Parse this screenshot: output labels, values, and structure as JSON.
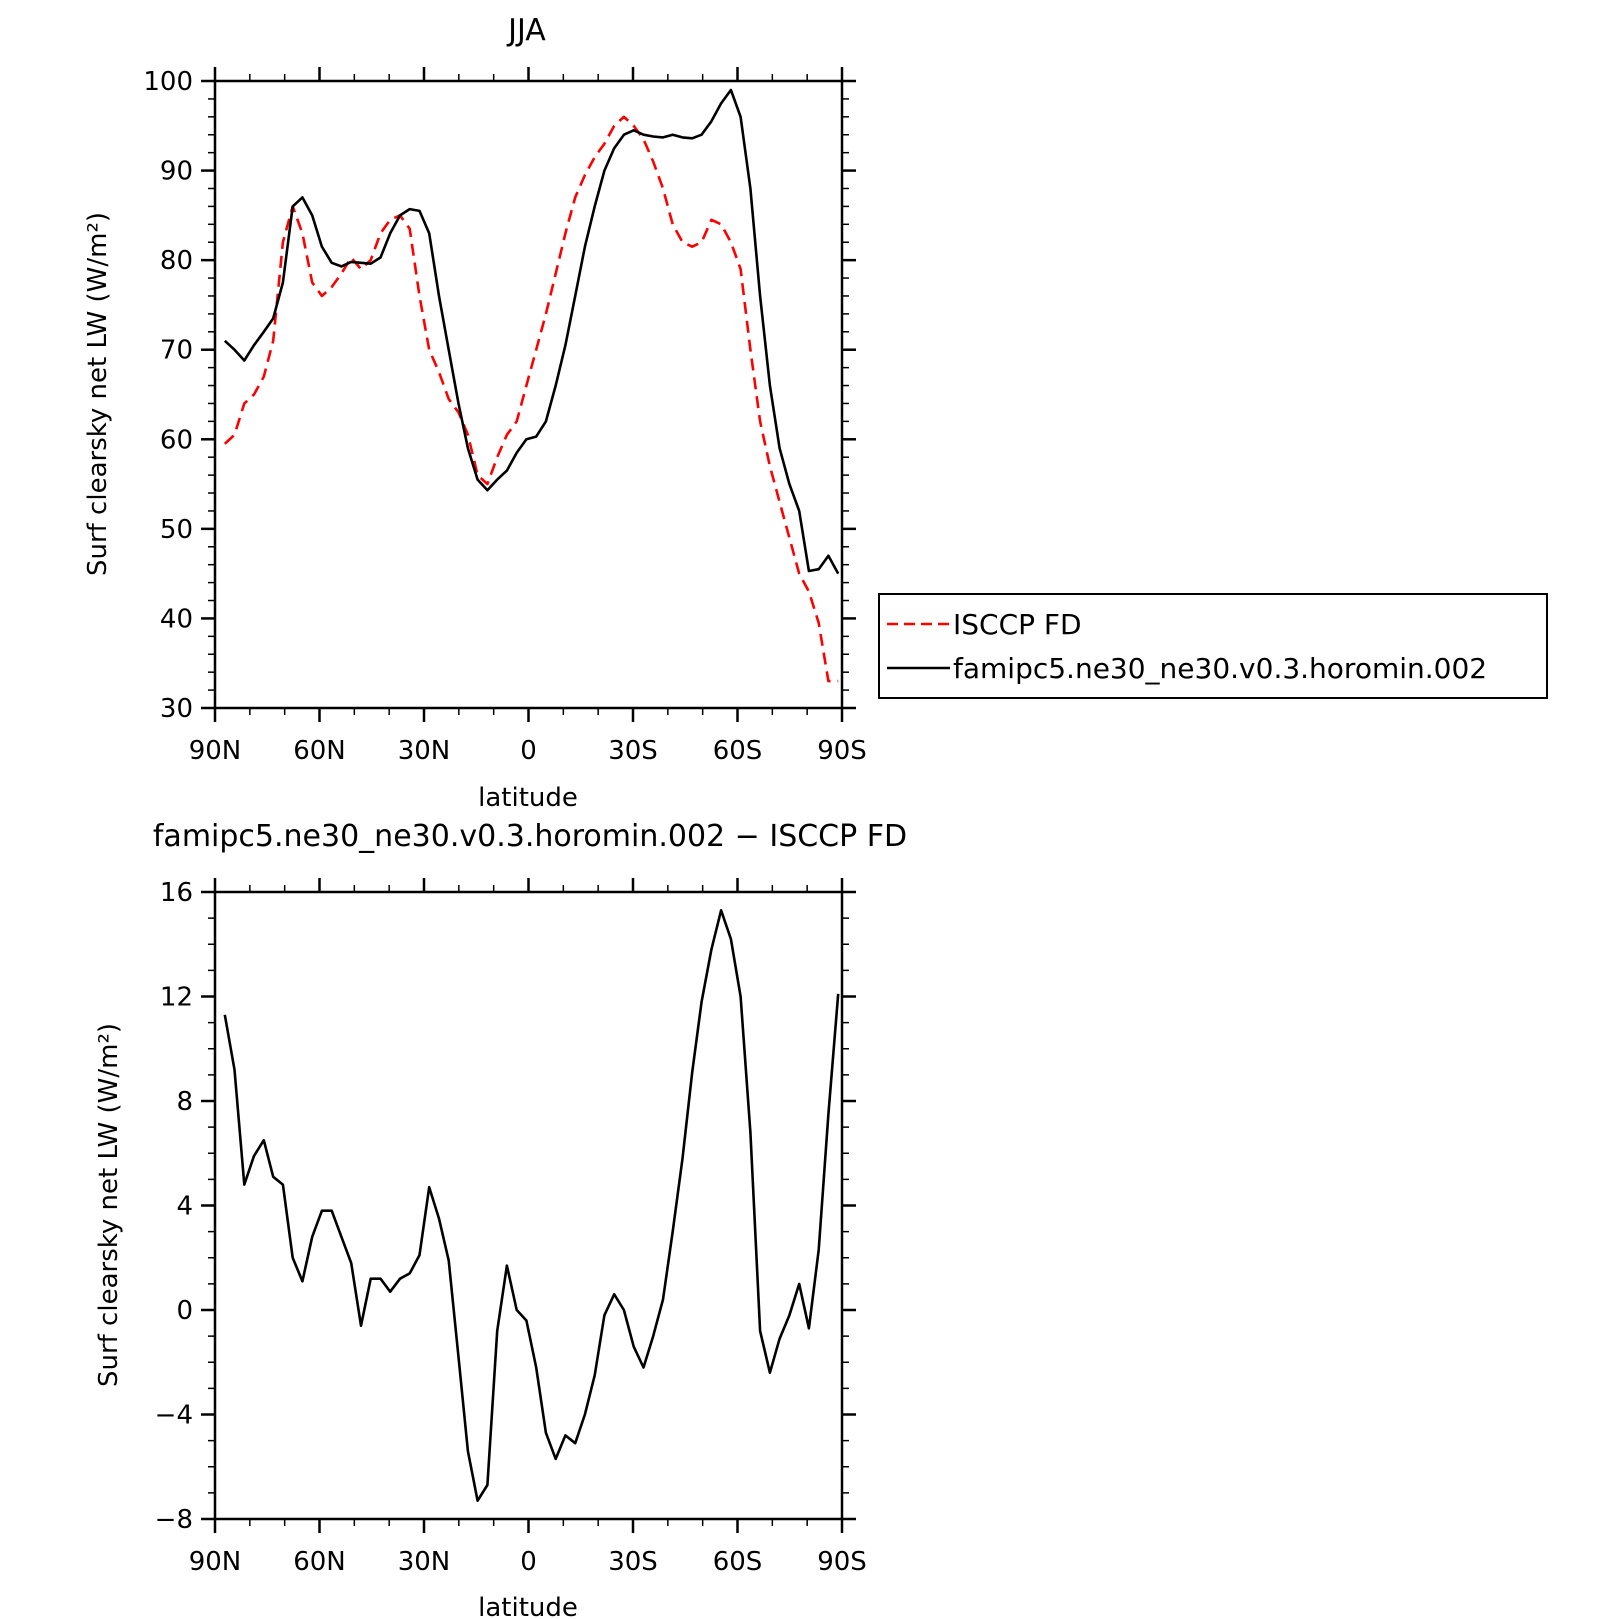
{
  "chart_data": [
    {
      "type": "line",
      "title": "JJA",
      "xlabel": "latitude",
      "ylabel": "Surf clearsky net LW (W/m²)",
      "xlim": [
        90,
        -90
      ],
      "ylim": [
        30,
        100
      ],
      "yticks": [
        30,
        40,
        50,
        60,
        70,
        80,
        90,
        100
      ],
      "ytick_labels": [
        "30",
        "40",
        "50",
        "60",
        "70",
        "80",
        "90",
        "100"
      ],
      "xticks": [
        90,
        60,
        30,
        0,
        -30,
        -60,
        -90
      ],
      "xtick_labels": [
        "90N",
        "60N",
        "30N",
        "0",
        "30S",
        "60S",
        "90S"
      ],
      "grid": false,
      "legend": "right",
      "x": [
        87.2,
        84.4,
        81.6,
        78.8,
        76.0,
        73.3,
        70.5,
        67.7,
        64.9,
        62.1,
        59.3,
        56.5,
        53.7,
        50.9,
        48.1,
        45.3,
        42.5,
        39.7,
        36.9,
        34.1,
        31.3,
        28.5,
        25.7,
        22.9,
        20.1,
        17.4,
        14.6,
        11.8,
        9.0,
        6.2,
        3.4,
        0.6,
        -2.2,
        -5.0,
        -7.8,
        -10.6,
        -13.4,
        -16.2,
        -19.0,
        -21.8,
        -24.6,
        -27.4,
        -30.2,
        -33.0,
        -35.8,
        -38.6,
        -41.4,
        -44.2,
        -47.0,
        -49.7,
        -52.5,
        -55.3,
        -58.1,
        -60.9,
        -63.7,
        -66.5,
        -69.3,
        -72.1,
        -74.9,
        -77.7,
        -80.5,
        -83.3,
        -86.1,
        -88.9
      ],
      "series": [
        {
          "name": "ISCCP FD",
          "color": "#ff0000",
          "dash": "dashed",
          "values": [
            59.5,
            60.5,
            64.0,
            65.0,
            67.0,
            71.0,
            82.0,
            86.0,
            83.0,
            77.5,
            76.0,
            77.0,
            78.5,
            80.3,
            79.0,
            80.0,
            83.0,
            84.5,
            85.0,
            83.5,
            76.0,
            70.0,
            67.5,
            64.5,
            63.0,
            60.5,
            56.0,
            55.0,
            58.0,
            60.5,
            62.0,
            66.0,
            70.0,
            74.0,
            78.5,
            83.0,
            87.0,
            89.5,
            91.5,
            93.0,
            95.0,
            96.0,
            95.0,
            93.5,
            91.0,
            88.0,
            84.0,
            82.0,
            81.5,
            82.0,
            84.5,
            84.0,
            82.0,
            79.0,
            70.0,
            62.0,
            57.0,
            53.0,
            49.0,
            45.0,
            43.0,
            39.5,
            33.0,
            33.0
          ]
        },
        {
          "name": "famipc5.ne30_ne30.v0.3.horomin.002",
          "color": "#000000",
          "dash": "solid",
          "values": [
            71.0,
            70.0,
            68.8,
            70.5,
            72.0,
            73.5,
            77.5,
            86.0,
            87.0,
            85.0,
            81.5,
            79.7,
            79.3,
            79.8,
            79.7,
            79.6,
            80.3,
            83.0,
            85.0,
            85.7,
            85.5,
            83.0,
            76.0,
            70.0,
            64.0,
            59.0,
            55.5,
            54.3,
            55.5,
            56.5,
            58.5,
            60.0,
            60.3,
            62.0,
            66.0,
            70.5,
            76.0,
            81.5,
            86.0,
            90.0,
            92.5,
            94.0,
            94.5,
            94.0,
            93.8,
            93.7,
            94.0,
            93.7,
            93.6,
            94.0,
            95.5,
            97.5,
            99.0,
            96.0,
            88.0,
            76.0,
            66.0,
            59.0,
            55.0,
            52.0,
            45.3,
            45.5,
            47.0,
            45.0
          ]
        }
      ]
    },
    {
      "type": "line",
      "title": "famipc5.ne30_ne30.v0.3.horomin.002 − ISCCP FD",
      "xlabel": "latitude",
      "ylabel": "Surf clearsky net LW (W/m²)",
      "xlim": [
        90,
        -90
      ],
      "ylim": [
        -8,
        16
      ],
      "yticks": [
        -8,
        -4,
        0,
        4,
        8,
        12,
        16
      ],
      "ytick_labels": [
        "−8",
        "−4",
        "0",
        "4",
        "8",
        "12",
        "16"
      ],
      "xticks": [
        90,
        60,
        30,
        0,
        -30,
        -60,
        -90
      ],
      "xtick_labels": [
        "90N",
        "60N",
        "30N",
        "0",
        "30S",
        "60S",
        "90S"
      ],
      "grid": false,
      "x": [
        87.2,
        84.4,
        81.6,
        78.8,
        76.0,
        73.3,
        70.5,
        67.7,
        64.9,
        62.1,
        59.3,
        56.5,
        53.7,
        50.9,
        48.1,
        45.3,
        42.5,
        39.7,
        36.9,
        34.1,
        31.3,
        28.5,
        25.7,
        22.9,
        20.1,
        17.4,
        14.6,
        11.8,
        9.0,
        6.2,
        3.4,
        0.6,
        -2.2,
        -5.0,
        -7.8,
        -10.6,
        -13.4,
        -16.2,
        -19.0,
        -21.8,
        -24.6,
        -27.4,
        -30.2,
        -33.0,
        -35.8,
        -38.6,
        -41.4,
        -44.2,
        -47.0,
        -49.7,
        -52.5,
        -55.3,
        -58.1,
        -60.9,
        -63.7,
        -66.5,
        -69.3,
        -72.1,
        -74.9,
        -77.7,
        -80.5,
        -83.3,
        -86.1,
        -88.9
      ],
      "series": [
        {
          "color": "#000000",
          "values": [
            11.3,
            9.2,
            4.8,
            5.9,
            6.5,
            5.1,
            4.8,
            2.0,
            1.1,
            2.8,
            3.8,
            3.8,
            2.8,
            1.8,
            -0.6,
            1.2,
            1.2,
            0.7,
            1.2,
            1.4,
            2.1,
            4.7,
            3.5,
            1.9,
            -1.8,
            -5.4,
            -7.3,
            -6.7,
            -0.8,
            1.7,
            0.0,
            -0.4,
            -2.2,
            -4.7,
            -5.7,
            -4.8,
            -5.1,
            -4.0,
            -2.5,
            -0.2,
            0.6,
            0.0,
            -1.4,
            -2.2,
            -1.0,
            0.4,
            3.0,
            5.8,
            9.1,
            11.8,
            13.8,
            15.3,
            14.2,
            12.0,
            6.8,
            -0.8,
            -2.4,
            -1.1,
            -0.2,
            1.0,
            -0.7,
            2.3,
            7.5,
            12.1
          ]
        }
      ]
    }
  ]
}
